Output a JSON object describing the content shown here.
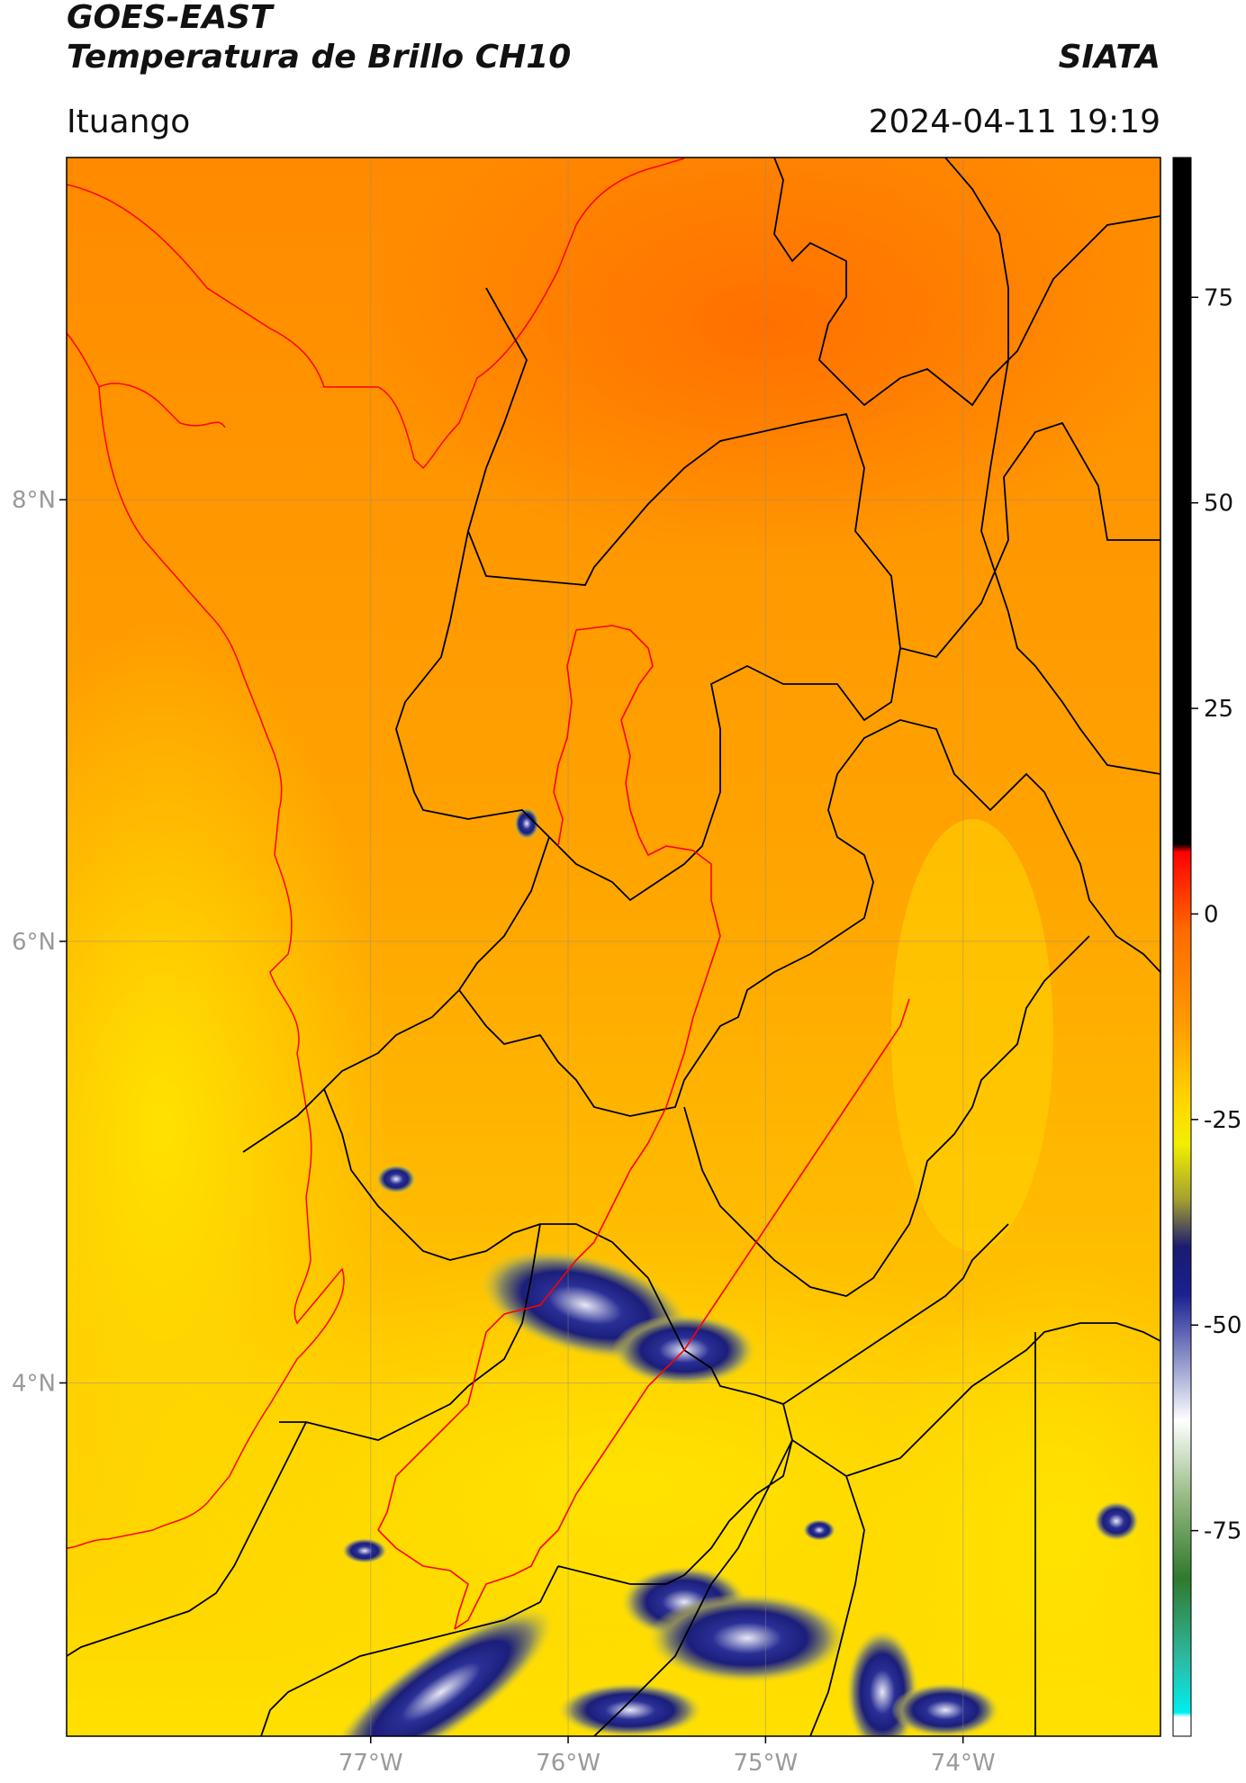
{
  "header": {
    "title_line1": "GOES-EAST",
    "title_line2": "Temperatura de Brillo CH10",
    "organization": "SIATA",
    "location": "Ituango",
    "datetime": "2024-04-11 19:19"
  },
  "map": {
    "lat_ticks": [
      {
        "value": 8,
        "label": "8°N"
      },
      {
        "value": 6,
        "label": "6°N"
      },
      {
        "value": 4,
        "label": "4°N"
      }
    ],
    "lon_ticks": [
      {
        "value": -77,
        "label": "77°W"
      },
      {
        "value": -76,
        "label": "76°W"
      },
      {
        "value": -75,
        "label": "75°W"
      },
      {
        "value": -74,
        "label": "74°W"
      }
    ],
    "extent": {
      "lon_min": -78.54,
      "lon_max": -73.0,
      "lat_min": 2.4,
      "lat_max": 9.55
    },
    "colors": {
      "warm_orange": "#ff7f00",
      "orange": "#ff9a00",
      "yellow": "#ffe600",
      "cold_blue": "#1a1f8c",
      "border_black": "#000000",
      "basin_red": "#ff0000"
    }
  },
  "colorbar": {
    "ticks": [
      {
        "value": 75,
        "label": "75"
      },
      {
        "value": 50,
        "label": "50"
      },
      {
        "value": 25,
        "label": "25"
      },
      {
        "value": 0,
        "label": "0"
      },
      {
        "value": -25,
        "label": "-25"
      },
      {
        "value": -50,
        "label": "-50"
      },
      {
        "value": -75,
        "label": "-75"
      }
    ],
    "range": [
      -100,
      92
    ]
  }
}
